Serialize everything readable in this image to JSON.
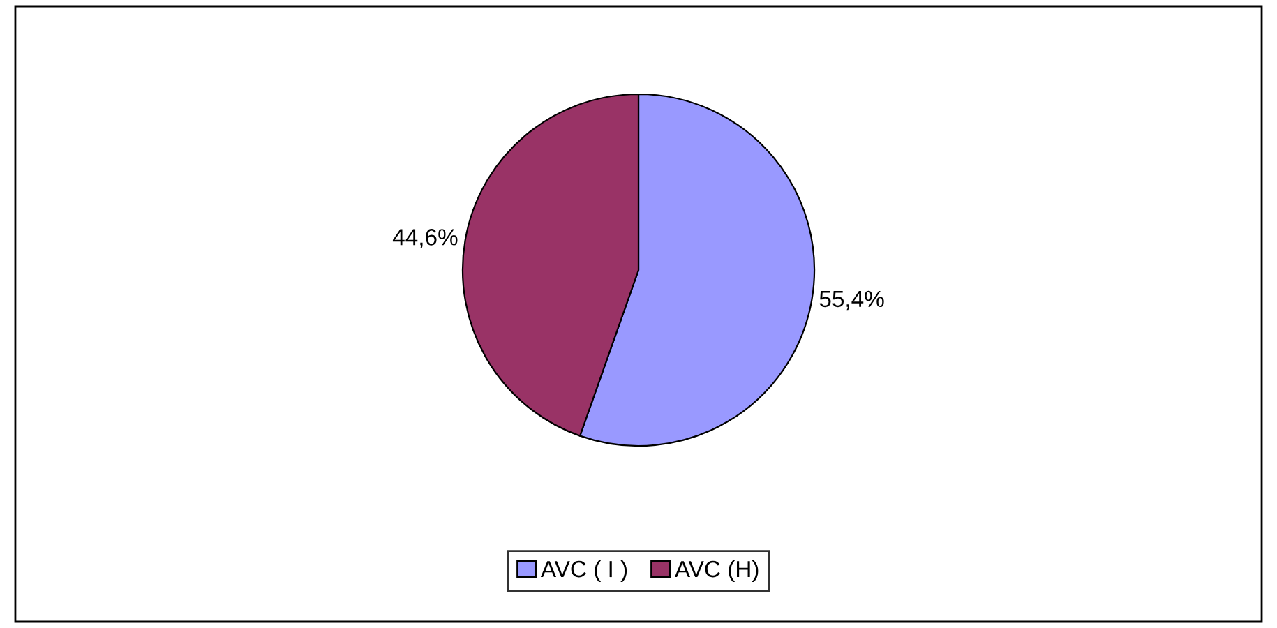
{
  "chart_data": {
    "type": "pie",
    "categories": [
      "AVC ( I )",
      "AVC (H)"
    ],
    "values": [
      55.4,
      44.6
    ],
    "colors": [
      "#9999ff",
      "#993366"
    ],
    "value_labels": [
      "55,4%",
      "44,6%"
    ],
    "legend": "bottom"
  }
}
